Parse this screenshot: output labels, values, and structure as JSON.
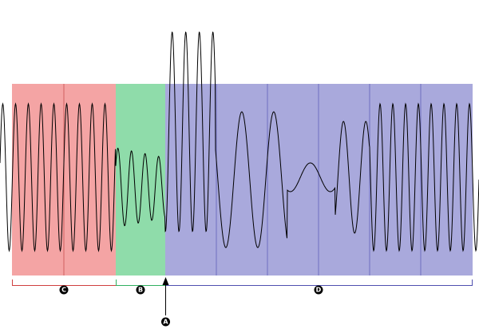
{
  "labels": {
    "c": "C",
    "b": "B",
    "d": "D",
    "a": "A"
  }
}
